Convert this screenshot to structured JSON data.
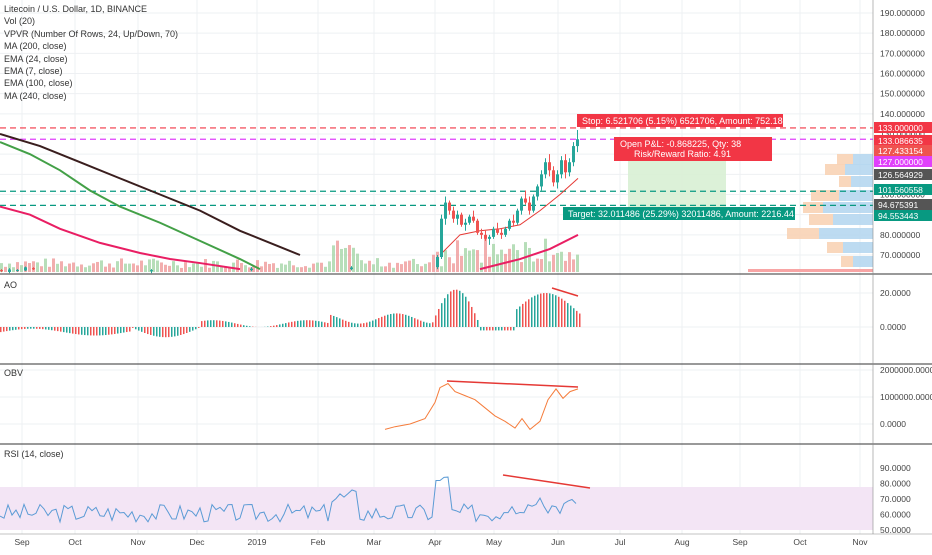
{
  "legend": [
    "Litecoin / U.S. Dollar, 1D, BINANCE",
    "Vol (20)",
    "VPVR (Number Of Rows, 24, Up/Down, 70)",
    "MA (200, close)",
    "EMA (24, close)",
    "EMA (7, close)",
    "EMA (100, close)",
    "MA (240, close)"
  ],
  "colors": {
    "up": "#26a69a",
    "down": "#ef5350",
    "ma200": "#3a1e1e",
    "ema100": "#43a047",
    "ma240": "#e91e63",
    "ema24": "#e53935",
    "stop": "#f23645",
    "target": "#089981",
    "magenta": "#e040fb",
    "obv": "#f57c3b",
    "rsi": "#5b9bd5",
    "rsiBand": "#f3e5f5"
  },
  "chart_data": [
    {
      "type": "candlestick",
      "pane": "price",
      "ylim": [
        62,
        196
      ],
      "yticks": [
        70,
        80,
        90,
        100,
        110,
        120,
        130,
        140,
        150,
        160,
        170,
        180,
        190
      ],
      "ytick_labels": [
        "70.000000",
        "80.000000",
        "90.000000",
        "100.000000",
        "110.000000",
        "120.000000",
        "130.000000",
        "140.000000",
        "150.000000",
        "160.000000",
        "170.000000",
        "180.000000",
        "190.000000"
      ],
      "xticks": [
        "Sep",
        "Oct",
        "Nov",
        "Dec",
        "2019",
        "Feb",
        "Mar",
        "Apr",
        "May",
        "Jun",
        "Jul",
        "Aug",
        "Sep",
        "Oct",
        "Nov"
      ],
      "price_badges": [
        {
          "label": "133.000000",
          "value": 133,
          "color": "#f23645"
        },
        {
          "label": "133.086635",
          "value": 131.3,
          "color": "#f23645"
        },
        {
          "label": "127.433154",
          "value": 128.6,
          "color": "#ef5350"
        },
        {
          "label": "127.000000",
          "value": 126.2,
          "color": "#e040fb"
        },
        {
          "label": "126.564929",
          "value": 124.0,
          "color": "#555555"
        },
        {
          "label": "101.560558",
          "value": 101.6,
          "color": "#089981"
        },
        {
          "label": "94.675391",
          "value": 95.9,
          "color": "#555555"
        },
        {
          "label": "94.553443",
          "value": 94.0,
          "color": "#089981"
        }
      ],
      "trade": {
        "entry": 101.56,
        "stop": 133.0,
        "target": 94.55,
        "stop_label": "Stop: 6.521706 (5.15%) 6521706, Amount: 752.18",
        "pnl_label": "Open P&L: -0.868225, Qty: 38",
        "rr_label": "Risk/Reward Ratio: 4.91",
        "target_label": "Target: 32.011486 (25.29%) 32011486, Amount: 2216.44"
      },
      "hlines": [
        {
          "value": 133.0,
          "color": "#f23645",
          "style": "dashed"
        },
        {
          "value": 127.4,
          "color": "#e040fb",
          "style": "dashed"
        },
        {
          "value": 101.6,
          "color": "#089981",
          "style": "dashed"
        },
        {
          "value": 94.6,
          "color": "#089981",
          "style": "dashed"
        }
      ],
      "series": [
        {
          "values": [
            [
              0,
              62.5,
              63,
              61.5,
              62.4
            ],
            [
              8,
              61.6,
              63.5,
              61,
              62.8
            ],
            [
              16,
              62.2,
              63,
              61.7,
              62.6
            ],
            [
              24,
              62.3,
              64.3,
              62,
              63.9
            ],
            [
              32,
              63.5,
              63.9,
              62.6,
              62.9
            ],
            [
              150,
              62,
              63,
              61,
              62.5
            ],
            [
              250,
              62.5,
              64,
              61.8,
              63.2
            ],
            [
              350,
              63,
              64.5,
              62.4,
              63.8
            ],
            [
              436,
              64,
              70,
              63,
              69
            ],
            [
              440,
              69,
              90,
              68,
              88
            ],
            [
              444,
              88,
              99,
              85,
              96
            ],
            [
              448,
              96,
              97,
              90,
              92
            ],
            [
              452,
              92,
              94,
              86,
              88
            ],
            [
              456,
              88,
              92,
              85,
              90
            ],
            [
              460,
              90,
              91,
              84,
              85
            ],
            [
              464,
              85,
              88,
              82,
              86
            ],
            [
              468,
              86,
              90,
              85,
              89
            ],
            [
              472,
              89,
              92,
              86,
              87
            ],
            [
              476,
              87,
              88,
              80,
              81
            ],
            [
              480,
              81,
              83,
              78,
              80
            ],
            [
              484,
              80,
              82,
              77,
              78
            ],
            [
              488,
              78,
              80,
              75,
              79
            ],
            [
              492,
              79,
              84,
              78,
              83
            ],
            [
              496,
              83,
              86,
              80,
              81
            ],
            [
              500,
              81,
              83,
              78,
              80
            ],
            [
              504,
              80,
              84,
              79,
              83
            ],
            [
              508,
              83,
              88,
              82,
              87
            ],
            [
              512,
              87,
              90,
              84,
              86
            ],
            [
              516,
              86,
              93,
              85,
              92
            ],
            [
              520,
              92,
              99,
              90,
              98
            ],
            [
              524,
              98,
              102,
              95,
              96
            ],
            [
              528,
              96,
              99,
              90,
              92
            ],
            [
              532,
              92,
              100,
              91,
              99
            ],
            [
              536,
              99,
              105,
              97,
              104
            ],
            [
              540,
              104,
              112,
              102,
              110
            ],
            [
              544,
              110,
              118,
              108,
              116
            ],
            [
              548,
              116,
              120,
              109,
              112
            ],
            [
              552,
              112,
              114,
              104,
              106
            ],
            [
              556,
              106,
              112,
              103,
              110
            ],
            [
              560,
              110,
              119,
              108,
              117
            ],
            [
              564,
              117,
              120,
              108,
              111
            ],
            [
              568,
              111,
              118,
              109,
              116
            ],
            [
              572,
              116,
              126,
              114,
              124
            ],
            [
              576,
              124,
              132,
              121,
              127.4
            ]
          ]
        }
      ]
    },
    {
      "type": "bar",
      "pane": "AO",
      "yticks": [
        0,
        20
      ],
      "ytick_labels": [
        "0.0000",
        "20.0000"
      ],
      "ylim": [
        -8,
        26
      ]
    },
    {
      "type": "line",
      "pane": "OBV",
      "yticks": [
        0,
        1000000,
        2000000
      ],
      "ytick_labels": [
        "0.0000",
        "1000000.0000",
        "2000000.0000"
      ],
      "ylim": [
        -300000,
        2100000
      ]
    },
    {
      "type": "line",
      "pane": "RSI",
      "yticks": [
        50,
        60,
        70,
        80,
        90
      ],
      "ytick_labels": [
        "50.0000",
        "60.0000",
        "70.0000",
        "80.0000",
        "90.0000"
      ],
      "ylim": [
        49,
        92
      ],
      "band": [
        30,
        70
      ]
    }
  ],
  "panes": {
    "ao": "AO",
    "obv": "OBV",
    "rsi": "RSI (14, close)"
  }
}
